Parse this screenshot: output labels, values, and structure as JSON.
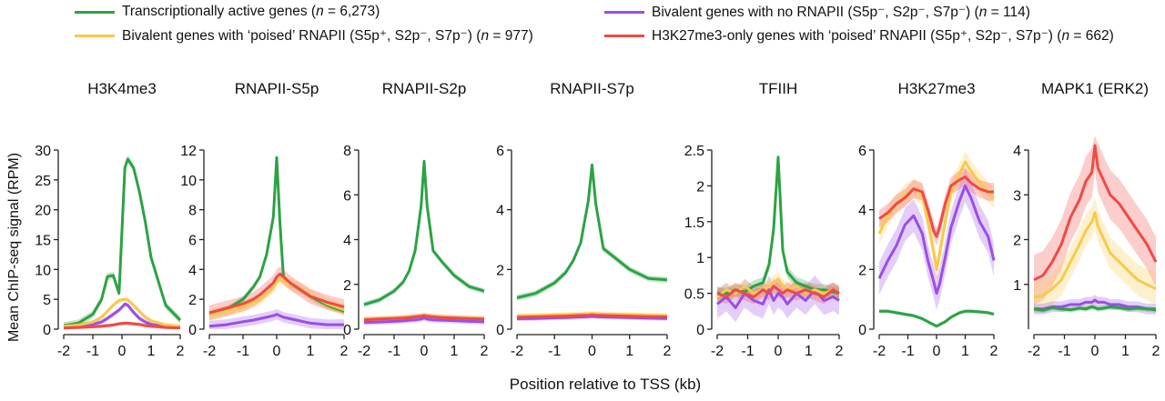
{
  "legend": [
    {
      "pre": "Transcriptionally active genes (",
      "n_italic": "n",
      "post": " = 6,273)",
      "color": "#2ca244"
    },
    {
      "pre": "Bivalent genes with ‘poised’ RNAPII (S5p⁺, S2p⁻, S7p⁻) (",
      "n_italic": "n",
      "post": " = 977)",
      "color": "#f8c94a"
    },
    {
      "pre": "Bivalent genes with no RNAPII (S5p⁻, S2p⁻, S7p⁻) (",
      "n_italic": "n",
      "post": " = 114)",
      "color": "#9a4ee8"
    },
    {
      "pre": "H3K27me3-only genes with ‘poised’ RNAPII (S5p⁺, S2p⁻, S7p⁻) (",
      "n_italic": "n",
      "post": " = 662)",
      "color": "#ef4a45"
    }
  ],
  "ylabel": "Mean ChIP-seq signal (RPM)",
  "xlabel": "Position relative to TSS (kb)",
  "chart_data": [
    {
      "type": "line",
      "title": "H3K4me3",
      "x": [
        -2,
        -1.5,
        -1,
        -0.7,
        -0.5,
        -0.3,
        -0.1,
        0.1,
        0.2,
        0.4,
        0.6,
        0.8,
        1,
        1.5,
        2
      ],
      "ylim": [
        0,
        30
      ],
      "yticks": [
        0,
        5,
        10,
        15,
        20,
        25,
        30
      ],
      "xticks": [
        -2,
        -1,
        0,
        1,
        2
      ],
      "series": [
        {
          "color": "#2ca244",
          "band": 0.6,
          "values": [
            0.6,
            1,
            2.5,
            5,
            8.8,
            9,
            6,
            27,
            28.5,
            27,
            23,
            18,
            12,
            4,
            1.5
          ]
        },
        {
          "color": "#9a4ee8",
          "band": 0.4,
          "values": [
            0.3,
            0.4,
            0.8,
            1.2,
            1.8,
            2.5,
            3.2,
            4.2,
            4,
            2.8,
            1.8,
            1.2,
            0.8,
            0.4,
            0.3
          ]
        },
        {
          "color": "#f8c94a",
          "band": 0.4,
          "values": [
            0.5,
            0.7,
            1.2,
            2,
            3,
            4,
            4.8,
            5,
            4.9,
            4,
            3,
            2,
            1.4,
            0.7,
            0.5
          ]
        },
        {
          "color": "#ef4a45",
          "band": 0.3,
          "values": [
            0.2,
            0.3,
            0.4,
            0.5,
            0.6,
            0.7,
            0.9,
            1,
            1,
            0.9,
            0.8,
            0.6,
            0.5,
            0.3,
            0.2
          ]
        }
      ]
    },
    {
      "type": "line",
      "title": "RNAPII-S5p",
      "x": [
        -2,
        -1.5,
        -1,
        -0.7,
        -0.5,
        -0.3,
        -0.1,
        0,
        0.1,
        0.2,
        0.4,
        0.6,
        0.8,
        1,
        1.5,
        2
      ],
      "ylim": [
        0,
        12
      ],
      "yticks": [
        0,
        2,
        4,
        6,
        8,
        10,
        12
      ],
      "xticks": [
        -2,
        -1,
        0,
        1,
        2
      ],
      "series": [
        {
          "color": "#2ca244",
          "band": 0.2,
          "values": [
            1,
            1.3,
            2,
            2.8,
            3.5,
            5,
            7.5,
            11.5,
            7,
            3.5,
            3,
            2.8,
            2.5,
            2.2,
            1.6,
            1.2
          ]
        },
        {
          "color": "#9a4ee8",
          "band": 0.35,
          "values": [
            0.2,
            0.3,
            0.5,
            0.6,
            0.7,
            0.8,
            0.9,
            1,
            0.9,
            0.8,
            0.7,
            0.6,
            0.5,
            0.4,
            0.3,
            0.3
          ]
        },
        {
          "color": "#f8c94a",
          "band": 0.4,
          "values": [
            0.9,
            1.2,
            1.5,
            1.8,
            2,
            2.4,
            2.8,
            3.2,
            3.4,
            3.3,
            3,
            2.8,
            2.6,
            2.3,
            1.7,
            1.3
          ]
        },
        {
          "color": "#ef4a45",
          "band": 0.5,
          "values": [
            1.1,
            1.4,
            1.7,
            2,
            2.3,
            2.7,
            3.1,
            3.5,
            3.7,
            3.5,
            3.1,
            2.8,
            2.5,
            2.2,
            1.8,
            1.5
          ]
        }
      ]
    },
    {
      "type": "line",
      "title": "RNAPII-S2p",
      "x": [
        -2,
        -1.5,
        -1,
        -0.7,
        -0.5,
        -0.3,
        -0.1,
        0,
        0.1,
        0.3,
        0.6,
        1,
        1.5,
        2
      ],
      "ylim": [
        0,
        8
      ],
      "yticks": [
        0,
        2,
        4,
        6,
        8
      ],
      "xticks": [
        -2,
        -1,
        0,
        1,
        2
      ],
      "series": [
        {
          "color": "#2ca244",
          "band": 0.12,
          "values": [
            1.1,
            1.3,
            1.7,
            2.1,
            2.6,
            3.5,
            5.5,
            7.5,
            5.5,
            3.5,
            3,
            2.4,
            1.9,
            1.7
          ]
        },
        {
          "color": "#9a4ee8",
          "band": 0.12,
          "values": [
            0.3,
            0.32,
            0.35,
            0.37,
            0.4,
            0.42,
            0.45,
            0.5,
            0.45,
            0.42,
            0.4,
            0.38,
            0.35,
            0.33
          ]
        },
        {
          "color": "#f8c94a",
          "band": 0.12,
          "values": [
            0.45,
            0.48,
            0.5,
            0.52,
            0.55,
            0.58,
            0.6,
            0.62,
            0.6,
            0.58,
            0.55,
            0.52,
            0.5,
            0.48
          ]
        },
        {
          "color": "#ef4a45",
          "band": 0.12,
          "values": [
            0.42,
            0.45,
            0.48,
            0.5,
            0.52,
            0.55,
            0.58,
            0.6,
            0.58,
            0.55,
            0.52,
            0.5,
            0.47,
            0.45
          ]
        }
      ]
    },
    {
      "type": "line",
      "title": "RNAPII-S7p",
      "x": [
        -2,
        -1.5,
        -1,
        -0.7,
        -0.5,
        -0.3,
        -0.1,
        0,
        0.1,
        0.3,
        0.6,
        1,
        1.5,
        2
      ],
      "ylim": [
        0,
        6
      ],
      "yticks": [
        0,
        2,
        4,
        6
      ],
      "xticks": [
        -2,
        -1,
        0,
        1,
        2
      ],
      "series": [
        {
          "color": "#2ca244",
          "band": 0.1,
          "values": [
            1.05,
            1.2,
            1.55,
            1.9,
            2.3,
            2.9,
            4.3,
            5.5,
            4.2,
            2.7,
            2.4,
            2,
            1.7,
            1.65
          ]
        },
        {
          "color": "#9a4ee8",
          "band": 0.08,
          "values": [
            0.35,
            0.36,
            0.38,
            0.39,
            0.4,
            0.41,
            0.42,
            0.43,
            0.42,
            0.41,
            0.4,
            0.39,
            0.37,
            0.36
          ]
        },
        {
          "color": "#f8c94a",
          "band": 0.08,
          "values": [
            0.45,
            0.46,
            0.48,
            0.49,
            0.5,
            0.51,
            0.52,
            0.53,
            0.52,
            0.51,
            0.5,
            0.49,
            0.47,
            0.46
          ]
        },
        {
          "color": "#ef4a45",
          "band": 0.08,
          "values": [
            0.4,
            0.41,
            0.43,
            0.44,
            0.45,
            0.46,
            0.47,
            0.48,
            0.47,
            0.46,
            0.45,
            0.44,
            0.42,
            0.41
          ]
        }
      ]
    },
    {
      "type": "line",
      "title": "TFIIH",
      "x": [
        -2,
        -1.7,
        -1.4,
        -1.1,
        -0.8,
        -0.5,
        -0.3,
        -0.15,
        0,
        0.15,
        0.3,
        0.6,
        0.9,
        1.2,
        1.5,
        1.8,
        2
      ],
      "ylim": [
        0,
        2.5
      ],
      "yticks": [
        0,
        0.5,
        1.0,
        1.5,
        2.0,
        2.5
      ],
      "xticks": [
        -2,
        -1,
        0,
        1,
        2
      ],
      "series": [
        {
          "color": "#2ca244",
          "band": 0.08,
          "values": [
            0.5,
            0.5,
            0.55,
            0.52,
            0.6,
            0.65,
            0.9,
            1.4,
            2.4,
            1.1,
            0.8,
            0.65,
            0.6,
            0.55,
            0.55,
            0.52,
            0.5
          ]
        },
        {
          "color": "#9a4ee8",
          "band": 0.2,
          "values": [
            0.35,
            0.45,
            0.3,
            0.5,
            0.4,
            0.35,
            0.55,
            0.4,
            0.5,
            0.45,
            0.35,
            0.5,
            0.4,
            0.55,
            0.4,
            0.45,
            0.4
          ]
        },
        {
          "color": "#f8c94a",
          "band": 0.1,
          "values": [
            0.45,
            0.55,
            0.5,
            0.6,
            0.5,
            0.55,
            0.6,
            0.65,
            0.7,
            0.6,
            0.55,
            0.6,
            0.5,
            0.55,
            0.5,
            0.55,
            0.5
          ]
        },
        {
          "color": "#ef4a45",
          "band": 0.1,
          "values": [
            0.5,
            0.45,
            0.55,
            0.5,
            0.45,
            0.55,
            0.5,
            0.6,
            0.55,
            0.5,
            0.55,
            0.5,
            0.55,
            0.5,
            0.45,
            0.55,
            0.5
          ]
        }
      ]
    },
    {
      "type": "line",
      "title": "H3K27me3",
      "x": [
        -2,
        -1.7,
        -1.4,
        -1.1,
        -0.8,
        -0.5,
        -0.3,
        -0.1,
        0,
        0.1,
        0.3,
        0.5,
        0.8,
        1,
        1.2,
        1.5,
        1.8,
        2
      ],
      "ylim": [
        0,
        6
      ],
      "yticks": [
        0,
        2,
        4,
        6
      ],
      "xticks": [
        -2,
        -1,
        0,
        1,
        2
      ],
      "series": [
        {
          "color": "#9a4ee8",
          "band": 0.55,
          "values": [
            1.7,
            2.3,
            2.8,
            3.5,
            3.8,
            3.2,
            2.3,
            1.6,
            1.2,
            1.5,
            2.4,
            3.4,
            4.3,
            4.8,
            4.4,
            3.6,
            3.1,
            2.3
          ]
        },
        {
          "color": "#f8c94a",
          "band": 0.35,
          "values": [
            3.2,
            3.8,
            4.2,
            4.5,
            4.7,
            4.5,
            3.6,
            2.6,
            2.0,
            2.5,
            3.6,
            4.6,
            5.2,
            5.6,
            5.3,
            4.9,
            4.6,
            4.4
          ]
        },
        {
          "color": "#ef4a45",
          "band": 0.3,
          "values": [
            3.7,
            3.9,
            4.2,
            4.4,
            4.7,
            4.6,
            4.0,
            3.3,
            3.1,
            3.4,
            4.2,
            4.8,
            5.0,
            5.1,
            4.9,
            4.7,
            4.6,
            4.6
          ]
        },
        {
          "color": "#2ca244",
          "band": 0.06,
          "values": [
            0.6,
            0.6,
            0.55,
            0.5,
            0.45,
            0.35,
            0.25,
            0.15,
            0.1,
            0.15,
            0.25,
            0.4,
            0.55,
            0.6,
            0.6,
            0.58,
            0.55,
            0.5
          ]
        }
      ]
    },
    {
      "type": "line",
      "title": "MAPK1 (ERK2)",
      "x": [
        -2,
        -1.7,
        -1.4,
        -1.1,
        -0.8,
        -0.5,
        -0.3,
        -0.1,
        0,
        0.1,
        0.3,
        0.5,
        0.8,
        1.1,
        1.4,
        1.7,
        2
      ],
      "ylim": [
        0,
        4
      ],
      "yticks": [
        1,
        2,
        3,
        4
      ],
      "xticks": [
        -2,
        -1,
        0,
        1,
        2
      ],
      "series": [
        {
          "color": "#ef4a45",
          "band": 0.55,
          "values": [
            1.1,
            1.2,
            1.5,
            1.9,
            2.5,
            2.9,
            3.3,
            3.5,
            4.1,
            3.6,
            3.3,
            3.0,
            2.8,
            2.5,
            2.2,
            1.9,
            1.5
          ]
        },
        {
          "color": "#f8c94a",
          "band": 0.35,
          "values": [
            0.7,
            0.75,
            0.9,
            1.1,
            1.5,
            1.9,
            2.2,
            2.4,
            2.6,
            2.3,
            2.0,
            1.7,
            1.5,
            1.3,
            1.1,
            1.0,
            0.9
          ]
        },
        {
          "color": "#9a4ee8",
          "band": 0.12,
          "values": [
            0.45,
            0.45,
            0.5,
            0.5,
            0.55,
            0.55,
            0.6,
            0.6,
            0.65,
            0.6,
            0.6,
            0.55,
            0.55,
            0.5,
            0.5,
            0.45,
            0.45
          ]
        },
        {
          "color": "#2ca244",
          "band": 0.06,
          "values": [
            0.45,
            0.42,
            0.48,
            0.45,
            0.43,
            0.47,
            0.45,
            0.5,
            0.48,
            0.45,
            0.47,
            0.5,
            0.48,
            0.45,
            0.47,
            0.45,
            0.43
          ]
        }
      ]
    }
  ]
}
